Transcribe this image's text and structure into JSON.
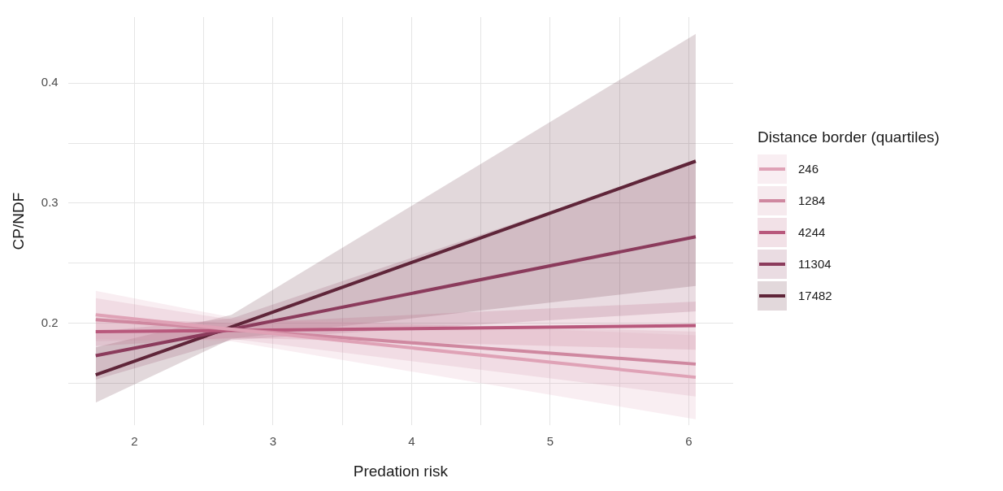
{
  "chart_data": {
    "type": "line",
    "xlabel": "Predation risk",
    "ylabel": "CP/NDF",
    "legend_title": "Distance border (quartiles)",
    "legend": "right",
    "grid": true,
    "marker": "none",
    "line_style": "solid",
    "xlim": [
      1.52,
      6.32
    ],
    "xticks": [
      2,
      {
        "value": 2.5,
        "label": null
      },
      3,
      {
        "value": 3.5,
        "label": null
      },
      4,
      {
        "value": 4.5,
        "label": null
      },
      5,
      {
        "value": 5.5,
        "label": null
      },
      6
    ],
    "ylim": [
      0.115,
      0.455
    ],
    "yticks": [
      {
        "value": 0.15,
        "label": null
      },
      {
        "value": 0.2,
        "label": "0.2"
      },
      {
        "value": 0.25,
        "label": null
      },
      {
        "value": 0.3,
        "label": "0.3"
      },
      {
        "value": 0.35,
        "label": null
      },
      {
        "value": 0.4,
        "label": "0.4"
      }
    ],
    "x": [
      1.72,
      2.7,
      6.05
    ],
    "series": [
      {
        "name": "246",
        "color": "#dfa2b6",
        "values": [
          0.207,
          0.195,
          0.155
        ],
        "lower": [
          0.187,
          0.185,
          0.12
        ],
        "upper": [
          0.227,
          0.205,
          0.19
        ]
      },
      {
        "name": "1284",
        "color": "#cf88a0",
        "values": [
          0.203,
          0.195,
          0.166
        ],
        "lower": [
          0.185,
          0.187,
          0.139
        ],
        "upper": [
          0.221,
          0.203,
          0.193
        ]
      },
      {
        "name": "4244",
        "color": "#b8587c",
        "values": [
          0.193,
          0.194,
          0.198
        ],
        "lower": [
          0.181,
          0.188,
          0.178
        ],
        "upper": [
          0.205,
          0.2,
          0.218
        ]
      },
      {
        "name": "11304",
        "color": "#8b3b5c",
        "values": [
          0.173,
          0.195,
          0.272
        ],
        "lower": [
          0.153,
          0.186,
          0.21
        ],
        "upper": [
          0.193,
          0.204,
          0.334
        ]
      },
      {
        "name": "17482",
        "color": "#5f2539",
        "values": [
          0.157,
          0.197,
          0.335
        ],
        "lower": [
          0.134,
          0.187,
          0.231
        ],
        "upper": [
          0.18,
          0.207,
          0.441
        ]
      }
    ]
  }
}
